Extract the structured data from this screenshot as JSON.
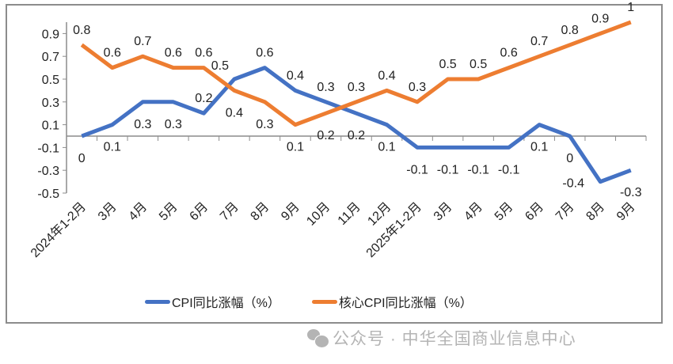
{
  "chart_data": {
    "type": "line",
    "categories": [
      "2024年1-2月",
      "3月",
      "4月",
      "5月",
      "6月",
      "7月",
      "8月",
      "9月",
      "10月",
      "11月",
      "12月",
      "2025年1-2月",
      "3月",
      "4月",
      "5月",
      "6月",
      "7月",
      "8月",
      "9月"
    ],
    "series": [
      {
        "name": "CPI同比涨幅（%）",
        "color": "#4472c4",
        "values": [
          0,
          0.1,
          0.3,
          0.3,
          0.2,
          0.5,
          0.6,
          0.4,
          0.3,
          0.2,
          0.1,
          -0.1,
          -0.1,
          -0.1,
          -0.1,
          0.1,
          0,
          -0.4,
          -0.3
        ]
      },
      {
        "name": "核心CPI同比涨幅（%）",
        "color": "#ed7d31",
        "values": [
          0.8,
          0.6,
          0.7,
          0.6,
          0.6,
          0.4,
          0.3,
          0.1,
          0.2,
          0.3,
          0.4,
          0.3,
          0.5,
          0.5,
          0.6,
          0.7,
          0.8,
          0.9,
          1
        ]
      }
    ],
    "yticks": [
      "0.9",
      "0.7",
      "0.5",
      "0.3",
      "0.1",
      "-0.1",
      "-0.3",
      "-0.5"
    ],
    "ylim": [
      -0.5,
      1.0
    ],
    "grid": false,
    "data_labels": true,
    "legend_position": "bottom"
  },
  "watermark": "公众号 · 中华全国商业信息中心"
}
